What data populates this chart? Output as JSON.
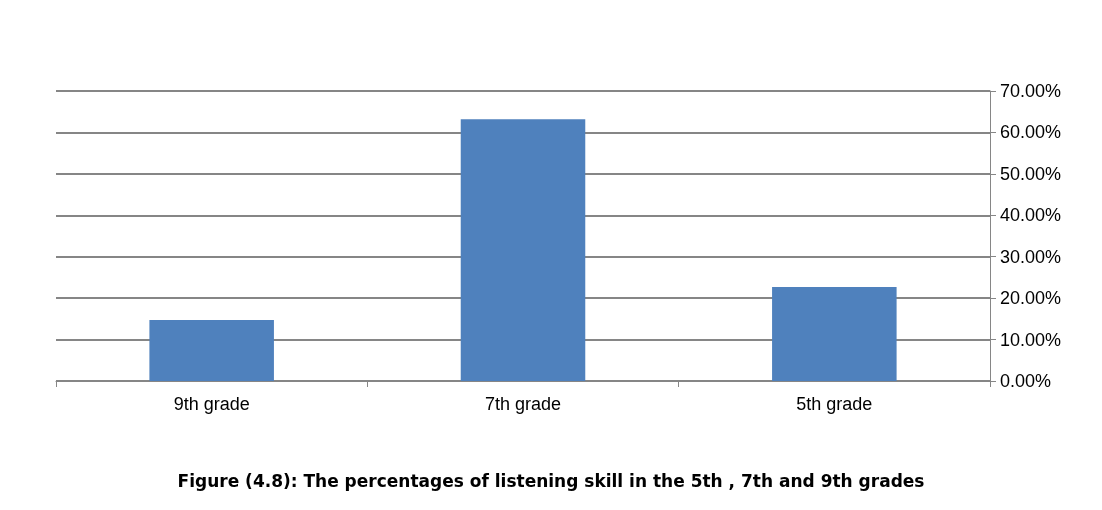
{
  "chart_data": {
    "type": "bar",
    "title": "Figure (4.8): The percentages of listening skill in the 5th , 7th and 9th grades",
    "categories": [
      "9th grade",
      "7th grade",
      "5th grade"
    ],
    "values": [
      14.7,
      63.2,
      22.7
    ],
    "color": "#4f81bd",
    "ylim": [
      0,
      70
    ],
    "yticks": [
      {
        "value": 0,
        "label": "0.00%"
      },
      {
        "value": 10,
        "label": "10.00%"
      },
      {
        "value": 20,
        "label": "20.00%"
      },
      {
        "value": 30,
        "label": "30.00%"
      },
      {
        "value": 40,
        "label": "40.00%"
      },
      {
        "value": 50,
        "label": "50.00%"
      },
      {
        "value": 60,
        "label": "60.00%"
      },
      {
        "value": 70,
        "label": "70.00%"
      }
    ],
    "grid": true
  }
}
